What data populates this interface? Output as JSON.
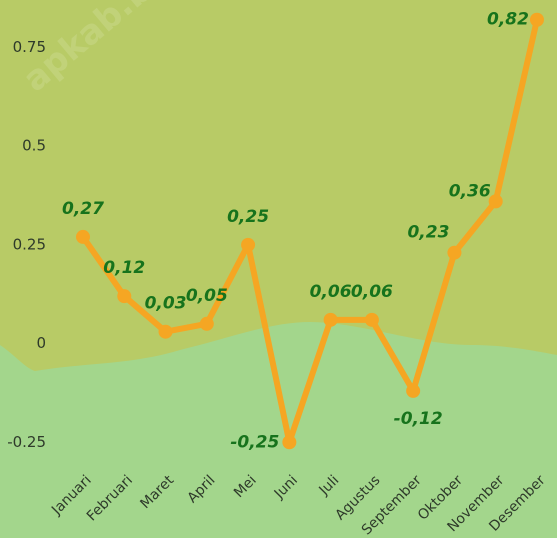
{
  "watermark": "apkab.bp",
  "chart_data": {
    "type": "line",
    "categories": [
      "Januari",
      "Februari",
      "Maret",
      "April",
      "Mei",
      "Juni",
      "Juli",
      "Agustus",
      "September",
      "Oktober",
      "November",
      "Desember"
    ],
    "series": [
      {
        "name": null,
        "color": "#f5a623",
        "values": [
          0.27,
          0.12,
          0.03,
          0.05,
          0.25,
          -0.25,
          0.06,
          0.06,
          -0.12,
          0.23,
          0.36,
          0.82
        ],
        "value_labels": [
          "0,27",
          "0,12",
          "0,03",
          "0,05",
          "0,25",
          "-0,25",
          "0,06",
          "0,06",
          "-0,12",
          "0,23",
          "0,36",
          "0,82"
        ]
      }
    ],
    "ylim": [
      -0.3,
      0.87
    ],
    "yticks": [
      -0.25,
      0,
      0.25,
      0.5,
      0.75
    ],
    "grid": false
  }
}
